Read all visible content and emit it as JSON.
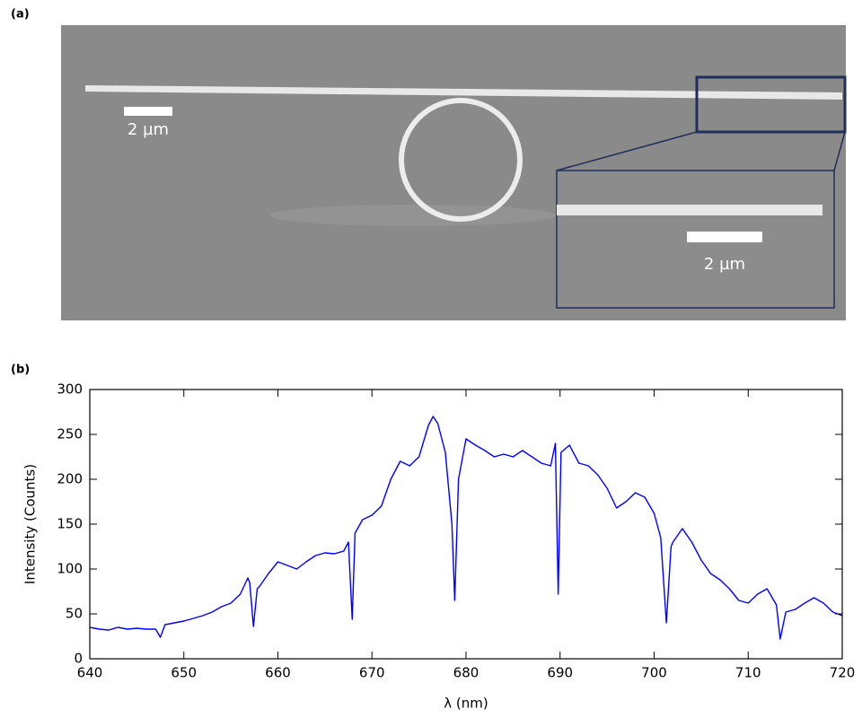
{
  "panel_a": {
    "label": "(a)",
    "scale_bar_main": "2 µm",
    "scale_bar_inset": "2 µm"
  },
  "panel_b": {
    "label": "(b)"
  },
  "chart_data": {
    "type": "line",
    "x_label": "λ (nm)",
    "y_label": "Intensity (Counts)",
    "x": [
      640,
      641,
      642,
      643,
      644,
      645,
      646,
      647,
      647.5,
      648,
      649,
      650,
      651,
      652,
      653,
      654,
      655,
      656,
      656.8,
      657,
      657.4,
      657.8,
      658,
      659,
      660,
      661,
      662,
      663,
      664,
      665,
      666,
      667,
      667.5,
      667.9,
      668.2,
      669,
      670,
      671,
      672,
      673,
      674,
      675,
      676,
      676.5,
      677,
      677.8,
      678.5,
      678.8,
      679.2,
      680,
      681,
      682,
      683,
      684,
      685,
      686,
      687,
      688,
      689,
      689.5,
      689.8,
      690.1,
      691,
      692,
      693,
      694,
      695,
      696,
      697,
      698,
      699,
      700,
      700.7,
      701.3,
      701.8,
      702,
      703,
      704,
      705,
      706,
      707,
      708,
      709,
      710,
      711,
      712,
      713,
      713.4,
      714,
      715,
      716,
      717,
      718,
      719,
      720
    ],
    "values": [
      35,
      33,
      32,
      35,
      33,
      34,
      33,
      33,
      24,
      38,
      40,
      42,
      45,
      48,
      52,
      58,
      62,
      72,
      90,
      85,
      36,
      78,
      80,
      95,
      108,
      104,
      100,
      108,
      115,
      118,
      117,
      120,
      130,
      44,
      140,
      155,
      160,
      170,
      200,
      220,
      215,
      225,
      260,
      270,
      262,
      230,
      150,
      65,
      200,
      245,
      238,
      232,
      225,
      228,
      225,
      232,
      225,
      218,
      215,
      240,
      72,
      230,
      238,
      218,
      215,
      205,
      190,
      168,
      175,
      185,
      180,
      162,
      135,
      40,
      125,
      130,
      145,
      130,
      110,
      95,
      88,
      78,
      65,
      62,
      72,
      78,
      60,
      22,
      52,
      55,
      62,
      68,
      62,
      52,
      48
    ],
    "color": "#0000ff",
    "xlim": [
      640,
      720
    ],
    "xticks": [
      640,
      650,
      660,
      670,
      680,
      690,
      700,
      710,
      720
    ],
    "ylim": [
      0,
      300
    ],
    "yticks": [
      0,
      50,
      100,
      150,
      200,
      250,
      300
    ]
  }
}
